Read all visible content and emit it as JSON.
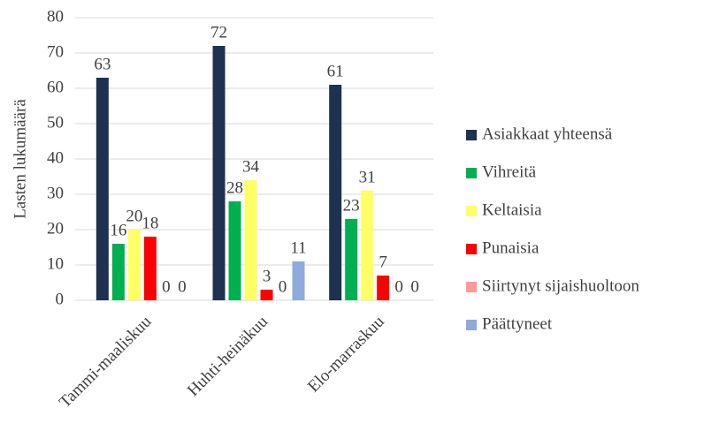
{
  "chart_data": {
    "type": "bar",
    "ylabel": "Lasten lukumäärä",
    "categories": [
      "Tammi-maaliskuu",
      "Huhti-heinäkuu",
      "Elo-marraskuu"
    ],
    "series": [
      {
        "name": "Asiakkaat yhteensä",
        "color": "#1f3150",
        "values": [
          63,
          72,
          61
        ]
      },
      {
        "name": "Vihreitä",
        "color": "#00b050",
        "values": [
          16,
          28,
          23
        ]
      },
      {
        "name": "Keltaisia",
        "color": "#ffff66",
        "values": [
          20,
          34,
          31
        ]
      },
      {
        "name": "Punaisia",
        "color": "#ff0000",
        "values": [
          18,
          3,
          7
        ]
      },
      {
        "name": "Siirtynyt sijaishuoltoon",
        "color": "#ff9999",
        "values": [
          0,
          0,
          0
        ]
      },
      {
        "name": "Päättyneet",
        "color": "#8eaadb",
        "values": [
          0,
          11,
          0
        ]
      }
    ],
    "ylim": [
      0,
      80
    ],
    "yticks": [
      0,
      10,
      20,
      30,
      40,
      50,
      60,
      70,
      80
    ],
    "grid": true,
    "legend": "right",
    "data_labels": true
  }
}
